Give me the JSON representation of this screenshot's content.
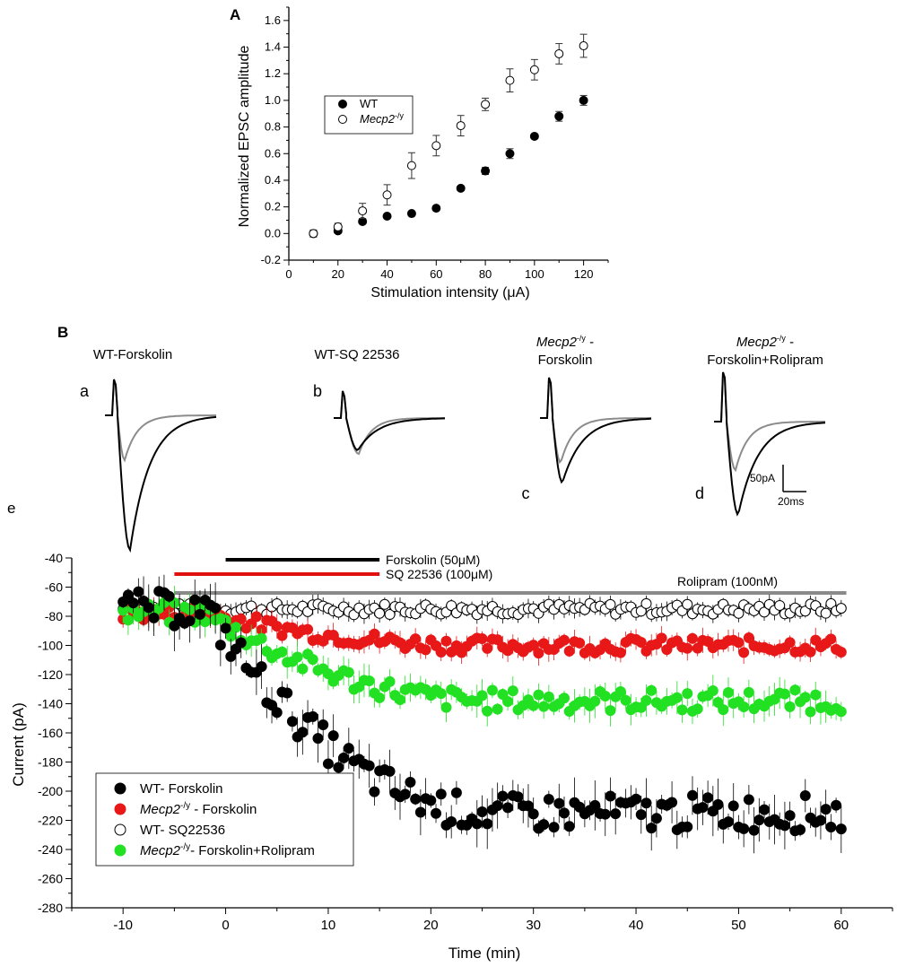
{
  "panel_A": {
    "label": "A",
    "chart_data": {
      "type": "scatter",
      "xlabel": "Stimulation intensity (μA)",
      "ylabel": "Normalized EPSC amplitude",
      "xlim": [
        0,
        130
      ],
      "ylim": [
        -0.2,
        1.7
      ],
      "x_ticks": [
        "0",
        "20",
        "40",
        "60",
        "80",
        "100",
        "120"
      ],
      "y_ticks": [
        "-0.2",
        "0.0",
        "0.2",
        "0.4",
        "0.6",
        "0.8",
        "1.0",
        "1.2",
        "1.4",
        "1.6"
      ],
      "series": [
        {
          "name": "WT",
          "filled": true,
          "x": [
            10,
            20,
            30,
            40,
            50,
            60,
            70,
            80,
            90,
            100,
            110,
            120
          ],
          "y": [
            0.0,
            0.02,
            0.09,
            0.13,
            0.15,
            0.19,
            0.34,
            0.47,
            0.6,
            0.73,
            0.88,
            1.0
          ],
          "err": [
            0.01,
            0.01,
            0.01,
            0.01,
            0.01,
            0.01,
            0.01,
            0.02,
            0.03,
            0.01,
            0.03,
            0.03
          ]
        },
        {
          "name": "Mecp2 -/y",
          "filled": false,
          "x": [
            10,
            20,
            30,
            40,
            50,
            60,
            70,
            80,
            90,
            100,
            110,
            120
          ],
          "y": [
            0.0,
            0.05,
            0.17,
            0.29,
            0.51,
            0.66,
            0.81,
            0.97,
            1.15,
            1.23,
            1.35,
            1.41
          ],
          "err": [
            0.02,
            0.02,
            0.05,
            0.07,
            0.09,
            0.07,
            0.07,
            0.04,
            0.08,
            0.07,
            0.07,
            0.08
          ]
        }
      ],
      "legend": [
        {
          "label": "WT",
          "italic": false,
          "sup": ""
        },
        {
          "label": "Mecp2",
          "italic": true,
          "sup": "-/y"
        }
      ]
    }
  },
  "panel_B": {
    "label": "B",
    "traces": [
      {
        "letter": "a",
        "title_lines": [
          "WT-Forskolin"
        ]
      },
      {
        "letter": "b",
        "title_lines": [
          "WT-SQ 22536"
        ]
      },
      {
        "letter": "c",
        "title_main": "Mecp2",
        "title_sup": "-/y",
        "title_tail": " -",
        "title_line2": "Forskolin"
      },
      {
        "letter": "d",
        "title_main": "Mecp2",
        "title_sup": "-/y",
        "title_tail": " -",
        "title_line2": "Forskolin+Rolipram"
      }
    ],
    "scale_bar": {
      "current": "50pA",
      "time": "20ms"
    }
  },
  "panel_e": {
    "label": "e",
    "chart_data": {
      "type": "scatter",
      "xlabel": "Time (min)",
      "ylabel": "Current (pA)",
      "xlim": [
        -15,
        65
      ],
      "ylim": [
        -280,
        -40
      ],
      "x_ticks": [
        "-10",
        "0",
        "10",
        "20",
        "30",
        "40",
        "50",
        "60"
      ],
      "y_ticks": [
        "-40",
        "-60",
        "-80",
        "-100",
        "-120",
        "-140",
        "-160",
        "-180",
        "-200",
        "-220",
        "-240",
        "-260",
        "-280"
      ],
      "drug_bars": [
        {
          "label": "Forskolin (50μM)",
          "start": 0,
          "end": 15,
          "color": "#000000"
        },
        {
          "label": "SQ 22536 (100μM)",
          "start": -5,
          "end": 15,
          "color": "#e01010"
        },
        {
          "label": "Rolipram (100nM)",
          "start": -5,
          "end": 60.5,
          "color": "#8a8a8a"
        }
      ],
      "series_summary": [
        {
          "name": "WT- Forskolin",
          "baseline": -75,
          "plateau": -215,
          "color": "#000000"
        },
        {
          "name": "Mecp2 -/y - Forskolin",
          "baseline": -78,
          "plateau": -100,
          "color": "#e81818"
        },
        {
          "name": "WT- SQ22536",
          "baseline": -75,
          "plateau": -75,
          "color": "#ffffff"
        },
        {
          "name": "Mecp2 -/y - Forskolin+Rolipram",
          "baseline": -78,
          "plateau": -138,
          "color": "#22e022"
        }
      ],
      "legend": [
        {
          "pre": "WT- Forskolin",
          "italic": "",
          "sup": "",
          "post": "",
          "color": "#000000",
          "open": false
        },
        {
          "pre": "",
          "italic": "Mecp2",
          "sup": "-/y",
          "post": " - Forskolin",
          "color": "#e81818",
          "open": false
        },
        {
          "pre": "WT- SQ22536",
          "italic": "",
          "sup": "",
          "post": "",
          "color": "#ffffff",
          "open": true
        },
        {
          "pre": "",
          "italic": "Mecp2",
          "sup": "-/y",
          "post": "- Forskolin+Rolipram",
          "color": "#22e022",
          "open": false
        }
      ]
    }
  }
}
